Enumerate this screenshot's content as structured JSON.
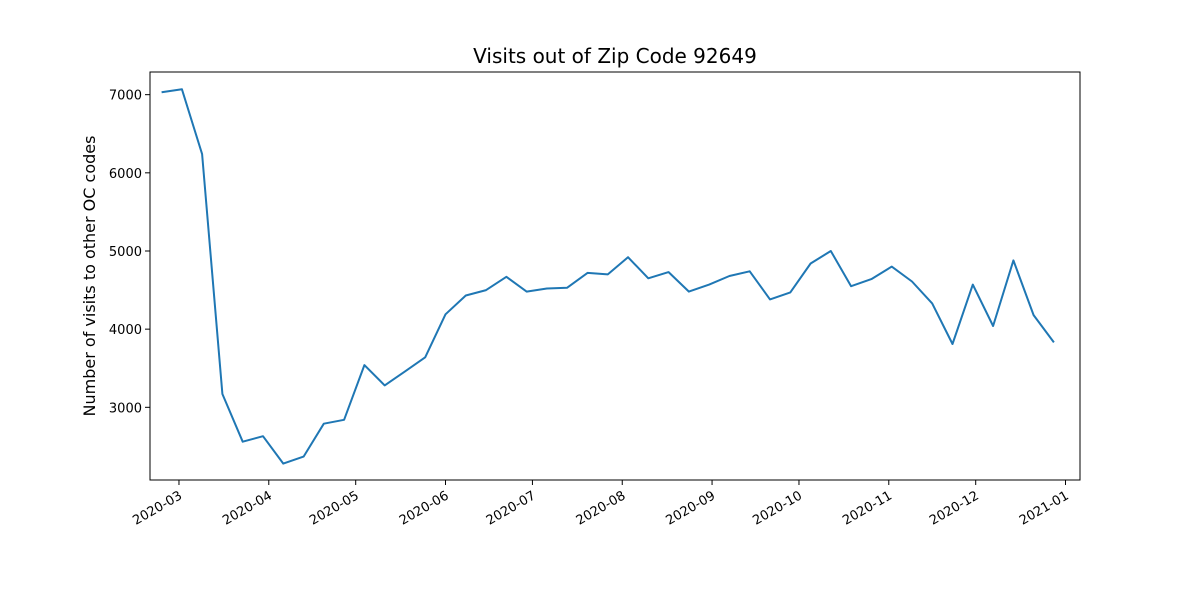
{
  "chart_data": {
    "type": "line",
    "title": "Visits out of Zip Code 92649",
    "xlabel": "",
    "ylabel": "Number of visits to other OC codes",
    "x_ticks": [
      "2020-03",
      "2020-04",
      "2020-05",
      "2020-06",
      "2020-07",
      "2020-08",
      "2020-09",
      "2020-10",
      "2020-11",
      "2020-12",
      "2021-01"
    ],
    "y_ticks": [
      "3000",
      "4000",
      "5000",
      "6000",
      "7000"
    ],
    "ylim": [
      2070,
      7290
    ],
    "xlim": [
      "2020-02-20",
      "2021-01-06"
    ],
    "grid": false,
    "legend": "none",
    "color": "#1f77b4",
    "series": [
      {
        "x": [
          "2020-02-24",
          "2020-03-02",
          "2020-03-09",
          "2020-03-16",
          "2020-03-23",
          "2020-03-30",
          "2020-04-06",
          "2020-04-13",
          "2020-04-20",
          "2020-04-27",
          "2020-05-04",
          "2020-05-11",
          "2020-05-18",
          "2020-05-25",
          "2020-06-01",
          "2020-06-08",
          "2020-06-15",
          "2020-06-22",
          "2020-06-29",
          "2020-07-06",
          "2020-07-13",
          "2020-07-20",
          "2020-07-27",
          "2020-08-03",
          "2020-08-10",
          "2020-08-17",
          "2020-08-24",
          "2020-08-31",
          "2020-09-07",
          "2020-09-14",
          "2020-09-21",
          "2020-09-28",
          "2020-10-05",
          "2020-10-12",
          "2020-10-19",
          "2020-10-26",
          "2020-11-02",
          "2020-11-09",
          "2020-11-16",
          "2020-11-23",
          "2020-11-30",
          "2020-12-07",
          "2020-12-14",
          "2020-12-21",
          "2020-12-28"
        ],
        "values": [
          7030,
          7070,
          6240,
          3170,
          2560,
          2630,
          2280,
          2370,
          2790,
          2840,
          3540,
          3280,
          3460,
          3640,
          4190,
          4430,
          4500,
          4670,
          4480,
          4520,
          4530,
          4720,
          4700,
          4920,
          4650,
          4730,
          4480,
          4570,
          4680,
          4740,
          4380,
          4470,
          4840,
          5000,
          4550,
          4640,
          4800,
          4610,
          4330,
          3810,
          4570,
          4040,
          4880,
          4180,
          3830
        ]
      }
    ]
  }
}
